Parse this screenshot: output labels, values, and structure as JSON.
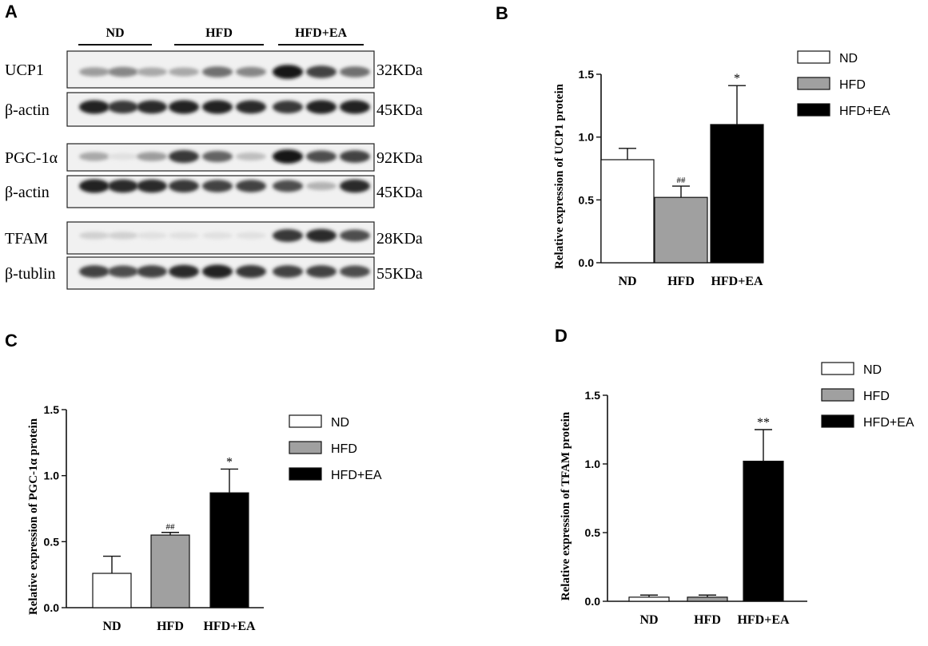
{
  "panel_a": {
    "letter": "A",
    "groups": [
      "ND",
      "HFD",
      "HFD+EA"
    ],
    "rows": [
      {
        "label": "UCP1",
        "size": "32KDa",
        "bands": [
          0.35,
          0.45,
          0.3,
          0.3,
          0.55,
          0.45,
          0.95,
          0.75,
          0.55
        ]
      },
      {
        "label": "β-actin",
        "size": "45KDa",
        "bands": [
          0.9,
          0.8,
          0.85,
          0.9,
          0.9,
          0.85,
          0.8,
          0.9,
          0.9
        ]
      },
      {
        "label": "PGC-1α",
        "size": "92KDa",
        "bands": [
          0.3,
          0.05,
          0.35,
          0.8,
          0.6,
          0.2,
          0.95,
          0.7,
          0.75
        ]
      },
      {
        "label": "β-actin",
        "size": "45KDa",
        "bands": [
          0.9,
          0.85,
          0.85,
          0.8,
          0.75,
          0.75,
          0.7,
          0.25,
          0.85
        ]
      },
      {
        "label": "TFAM",
        "size": "28KDa",
        "bands": [
          0.12,
          0.12,
          0.05,
          0.05,
          0.05,
          0.05,
          0.8,
          0.85,
          0.7
        ]
      },
      {
        "label": "β-tublin",
        "size": "55KDa",
        "bands": [
          0.75,
          0.7,
          0.75,
          0.85,
          0.9,
          0.8,
          0.75,
          0.75,
          0.7
        ]
      }
    ]
  },
  "legend": {
    "items": [
      {
        "label": "ND",
        "color": "#ffffff"
      },
      {
        "label": "HFD",
        "color": "#a0a0a0"
      },
      {
        "label": "HFD+EA",
        "color": "#000000"
      }
    ]
  },
  "chart_data": [
    {
      "panel": "B",
      "type": "bar",
      "categories": [
        "ND",
        "HFD",
        "HFD+EA"
      ],
      "values": [
        0.82,
        0.52,
        1.1
      ],
      "errors": [
        0.09,
        0.09,
        0.31
      ],
      "annotations": [
        "",
        "##",
        "*"
      ],
      "ylabel": "Relative expression of UCP1 protein",
      "ylim": [
        0,
        1.5
      ],
      "yticks": [
        "0.0",
        "0.5",
        "1.0",
        "1.5"
      ],
      "colors": [
        "#ffffff",
        "#a0a0a0",
        "#000000"
      ],
      "legend": "top-right"
    },
    {
      "panel": "C",
      "type": "bar",
      "categories": [
        "ND",
        "HFD",
        "HFD+EA"
      ],
      "values": [
        0.26,
        0.55,
        0.87
      ],
      "errors": [
        0.13,
        0.02,
        0.18
      ],
      "annotations": [
        "",
        "##",
        "*"
      ],
      "ylabel": "Relative expression of PGC-1α protein",
      "ylim": [
        0,
        1.5
      ],
      "yticks": [
        "0.0",
        "0.5",
        "1.0",
        "1.5"
      ],
      "colors": [
        "#ffffff",
        "#a0a0a0",
        "#000000"
      ],
      "legend": "top-right"
    },
    {
      "panel": "D",
      "type": "bar",
      "categories": [
        "ND",
        "HFD",
        "HFD+EA"
      ],
      "values": [
        0.03,
        0.03,
        1.02
      ],
      "errors": [
        0.015,
        0.015,
        0.23
      ],
      "annotations": [
        "",
        "",
        "**"
      ],
      "ylabel": "Relative expression of TFAM protein",
      "ylim": [
        0,
        1.5
      ],
      "yticks": [
        "0.0",
        "0.5",
        "1.0",
        "1.5"
      ],
      "colors": [
        "#ffffff",
        "#a0a0a0",
        "#000000"
      ],
      "legend": "top-right"
    }
  ]
}
